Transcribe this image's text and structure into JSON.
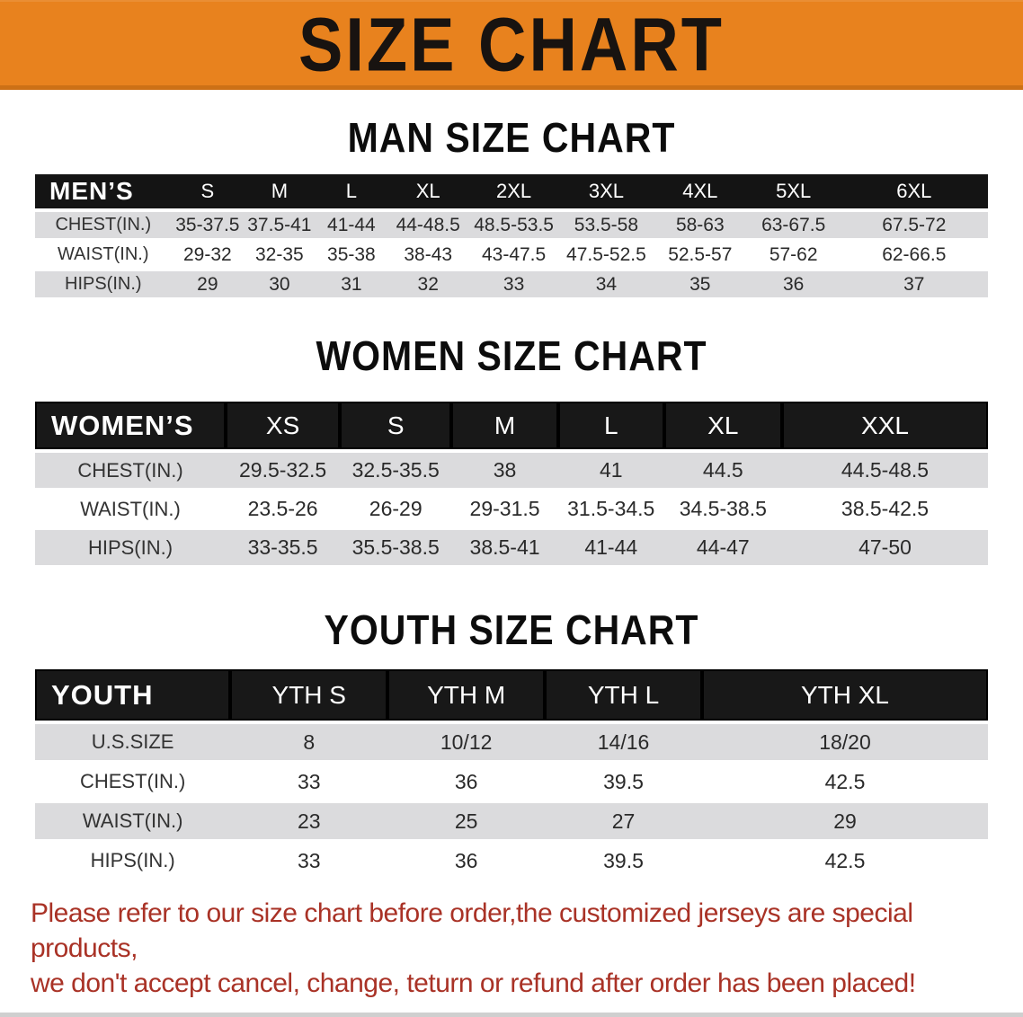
{
  "banner": {
    "title": "SIZE CHART",
    "bg_color": "#e8821e"
  },
  "sections": [
    {
      "heading": "MAN SIZE CHART",
      "table": {
        "header_label": "MEN’S",
        "columns": [
          "S",
          "M",
          "L",
          "XL",
          "2XL",
          "3XL",
          "4XL",
          "5XL",
          "6XL"
        ],
        "rows": [
          {
            "label": "CHEST(IN.)",
            "values": [
              "35-37.5",
              "37.5-41",
              "41-44",
              "44-48.5",
              "48.5-53.5",
              "53.5-58",
              "58-63",
              "63-67.5",
              "67.5-72"
            ]
          },
          {
            "label": "WAIST(IN.)",
            "values": [
              "29-32",
              "32-35",
              "35-38",
              "38-43",
              "43-47.5",
              "47.5-52.5",
              "52.5-57",
              "57-62",
              "62-66.5"
            ]
          },
          {
            "label": "HIPS(IN.)",
            "values": [
              "29",
              "30",
              "31",
              "32",
              "33",
              "34",
              "35",
              "36",
              "37"
            ]
          }
        ]
      }
    },
    {
      "heading": "WOMEN SIZE CHART",
      "table": {
        "header_label": "WOMEN’S",
        "columns": [
          "XS",
          "S",
          "M",
          "L",
          "XL",
          "XXL"
        ],
        "rows": [
          {
            "label": "CHEST(IN.)",
            "values": [
              "29.5-32.5",
              "32.5-35.5",
              "38",
              "41",
              "44.5",
              "44.5-48.5"
            ]
          },
          {
            "label": "WAIST(IN.)",
            "values": [
              "23.5-26",
              "26-29",
              "29-31.5",
              "31.5-34.5",
              "34.5-38.5",
              "38.5-42.5"
            ]
          },
          {
            "label": "HIPS(IN.)",
            "values": [
              "33-35.5",
              "35.5-38.5",
              "38.5-41",
              "41-44",
              "44-47",
              "47-50"
            ]
          }
        ]
      }
    },
    {
      "heading": "YOUTH SIZE CHART",
      "table": {
        "header_label": "YOUTH",
        "columns": [
          "YTH S",
          "YTH M",
          "YTH L",
          "YTH XL"
        ],
        "rows": [
          {
            "label": "U.S.SIZE",
            "values": [
              "8",
              "10/12",
              "14/16",
              "18/20"
            ]
          },
          {
            "label": "CHEST(IN.)",
            "values": [
              "33",
              "36",
              "39.5",
              "42.5"
            ]
          },
          {
            "label": "WAIST(IN.)",
            "values": [
              "23",
              "25",
              "27",
              "29"
            ]
          },
          {
            "label": "HIPS(IN.)",
            "values": [
              "33",
              "36",
              "39.5",
              "42.5"
            ]
          }
        ]
      }
    }
  ],
  "footer_note": {
    "line1": "Please refer to our size chart before order,the customized jerseys are special products,",
    "line2": "we don't accept cancel, change, teturn or refund after order has been placed!",
    "color": "#a93226"
  }
}
